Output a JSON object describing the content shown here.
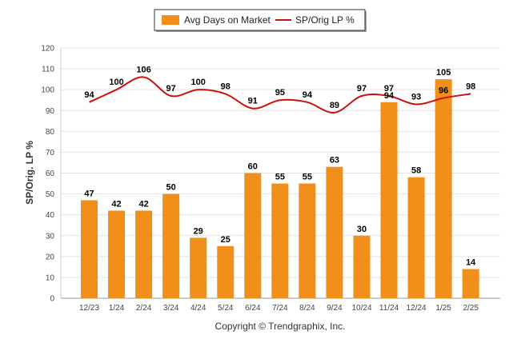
{
  "chart_data": {
    "type": "bar",
    "categories": [
      "12/23",
      "1/24",
      "2/24",
      "3/24",
      "4/24",
      "5/24",
      "6/24",
      "7/24",
      "8/24",
      "9/24",
      "10/24",
      "11/24",
      "12/24",
      "1/25",
      "2/25"
    ],
    "series": [
      {
        "name": "Avg Days on Market",
        "type": "bar",
        "color": "#F0901A",
        "values": [
          47,
          42,
          42,
          50,
          29,
          25,
          60,
          55,
          55,
          63,
          30,
          94,
          58,
          105,
          14
        ]
      },
      {
        "name": "SP/Orig LP %",
        "type": "line",
        "color": "#CC1111",
        "values": [
          94,
          100,
          106,
          97,
          100,
          98,
          91,
          95,
          94,
          89,
          97,
          97,
          93,
          96,
          98
        ]
      }
    ],
    "ylabel": "SP/Orig. LP %",
    "ylim": [
      0,
      120
    ],
    "yticks": [
      0,
      10,
      20,
      30,
      40,
      50,
      60,
      70,
      80,
      90,
      100,
      110,
      120
    ],
    "grid": true,
    "legend_position": "top-center"
  },
  "footer": {
    "copyright": "Copyright © Trendgraphix, Inc."
  }
}
